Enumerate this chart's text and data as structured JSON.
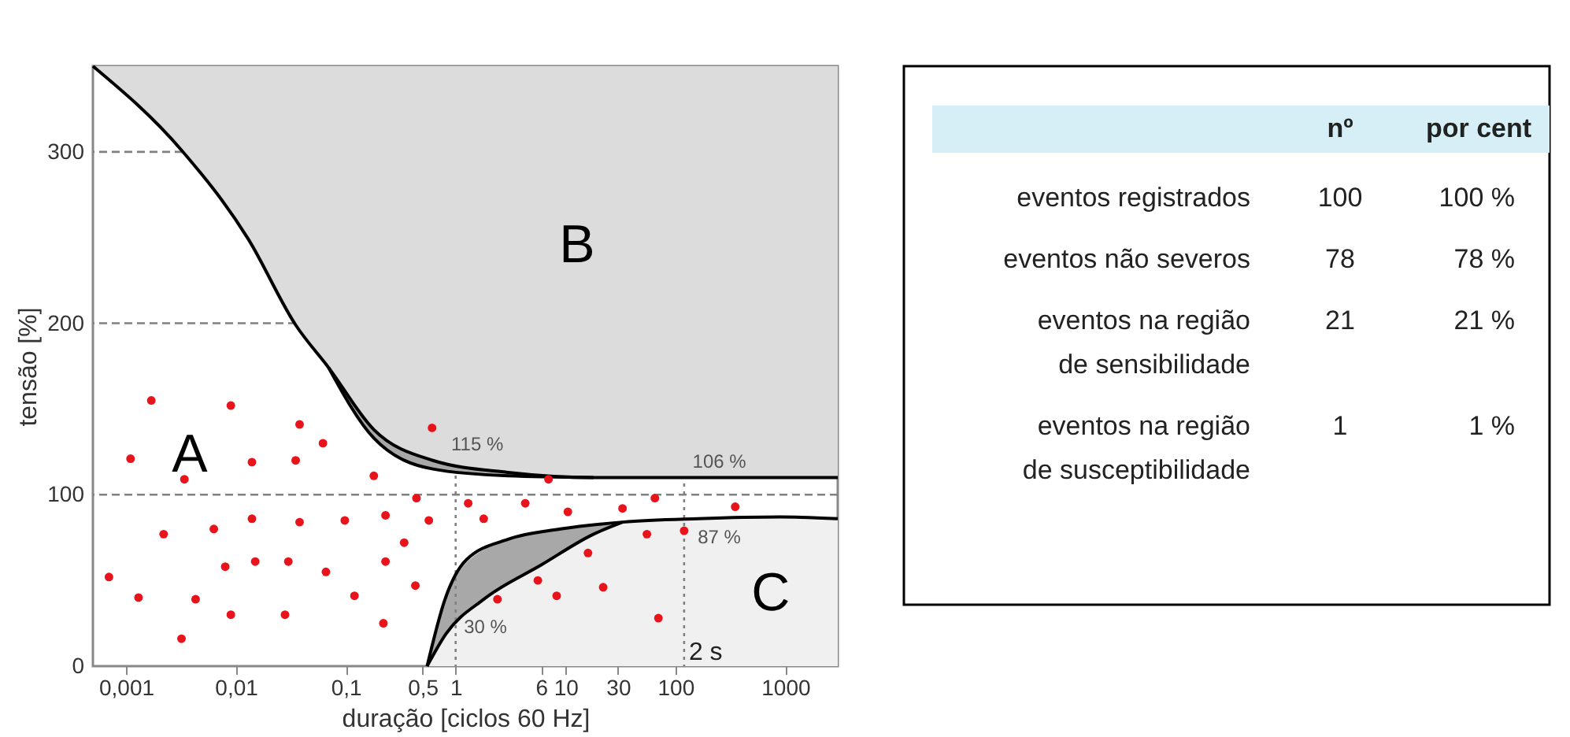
{
  "chart_data": [
    {
      "type": "scatter",
      "xlabel": "duração [ciclos 60 Hz]",
      "ylabel": "tensão [%]",
      "log": "x",
      "xlim": [
        0.0005,
        3000
      ],
      "ylim": [
        0,
        350
      ],
      "xticks": [
        {
          "value": 0.001,
          "label": "0,001"
        },
        {
          "value": 0.01,
          "label": "0,01"
        },
        {
          "value": 0.1,
          "label": "0,1"
        },
        {
          "value": 0.5,
          "label": "0,5"
        },
        1,
        6,
        10,
        30,
        100,
        1000
      ],
      "yticks": [
        0,
        100,
        200,
        300
      ],
      "series": [
        {
          "type": "line",
          "color": "#000000",
          "x": [
            0.0005,
            0.0032,
            0.013,
            0.035,
            0.07,
            0.18,
            0.62,
            3,
            18,
            3000
          ],
          "values": [
            350,
            301,
            249,
            199,
            174,
            138,
            120,
            113,
            110,
            110
          ],
          "lower": [
            350,
            301,
            249,
            199,
            174,
            138,
            120,
            113,
            110,
            110
          ],
          "upper": [
            350,
            350,
            350,
            350,
            350,
            350,
            350,
            350,
            350,
            350
          ]
        },
        {
          "type": "line",
          "color": "#000000",
          "x": [
            0.07,
            0.18,
            0.62,
            3,
            18
          ],
          "values": [
            174,
            133,
            115,
            111,
            110
          ],
          "lower": [
            174,
            133,
            115,
            111,
            110
          ],
          "upper": [
            174,
            138,
            120,
            113,
            110
          ]
        },
        {
          "type": "line",
          "color": "#000000",
          "x": [
            0.55,
            0.8,
            1.25,
            3,
            9,
            33,
            160,
            900,
            3000
          ],
          "values": [
            0,
            39,
            62,
            74,
            80,
            84,
            86,
            87,
            86
          ],
          "lower": [
            0,
            0,
            0,
            0,
            0,
            0,
            0,
            0,
            0
          ],
          "upper": [
            0,
            39,
            62,
            74,
            80,
            84,
            86,
            87,
            86
          ]
        },
        {
          "type": "line",
          "color": "#000000",
          "x": [
            0.55,
            0.82,
            1.8,
            6,
            18,
            33
          ],
          "values": [
            0,
            19,
            39,
            59,
            77,
            84
          ],
          "lower": [
            0,
            19,
            39,
            59,
            77,
            84
          ],
          "upper": [
            0,
            40,
            68,
            78,
            82,
            84
          ]
        },
        {
          "type": "scatter",
          "color": "#e8141b",
          "marker": "circle",
          "x": [
            0.0017,
            0.009,
            0.0011,
            0.038,
            0.062,
            0.014,
            0.035,
            0.0034,
            0.18,
            0.61,
            7,
            0.44,
            0.0022,
            0.0063,
            0.014,
            0.038,
            0.098,
            0.23,
            0.57,
            1.3,
            1.8,
            4.3,
            10.5,
            33,
            65,
            350,
            55,
            120,
            16,
            0.34,
            0.0007,
            0.008,
            0.015,
            0.03,
            0.066,
            0.23,
            0.0013,
            0.0043,
            0.12,
            0.43,
            5.6,
            8.3,
            22,
            2.4,
            0.009,
            0.028,
            0.22,
            0.0032,
            70
          ],
          "values": [
            155,
            152,
            121,
            141,
            130,
            119,
            120,
            109,
            111,
            139,
            109,
            98,
            77,
            80,
            86,
            84,
            85,
            88,
            85,
            95,
            86,
            95,
            90,
            92,
            98,
            93,
            77,
            79,
            66,
            72,
            52,
            58,
            61,
            61,
            55,
            61,
            40,
            39,
            41,
            47,
            50,
            41,
            46,
            39,
            30,
            30,
            25,
            16,
            28
          ]
        }
      ],
      "ref_lines": [
        {
          "axis": "y",
          "value": 100,
          "color": "#808080",
          "line_style": "dashed"
        },
        {
          "axis": "y",
          "value": 200,
          "color": "#808080",
          "line_style": "dashed"
        },
        {
          "axis": "y",
          "value": 300,
          "color": "#808080",
          "line_style": "dashed"
        },
        {
          "axis": "x",
          "value": 1,
          "color": "#808080",
          "line_style": "dotted"
        },
        {
          "axis": "x",
          "value": 120,
          "color": "#808080",
          "line_style": "dotted",
          "label": "2 s"
        }
      ],
      "annotations": [
        "A",
        "B",
        "C",
        "115 %",
        "106 %",
        "87 %",
        "30 %"
      ]
    },
    {
      "type": "other",
      "categories": [
        "eventos registrados",
        "eventos não severos",
        "eventos na região\nde sensibilidade",
        "eventos na região\nde susceptibilidade"
      ],
      "series": [
        {
          "name": "nº",
          "values": [
            100,
            78,
            21,
            1
          ],
          "data_labels": true
        },
        {
          "name": "por cent",
          "values": [
            100,
            78,
            21,
            1
          ],
          "value_labels": [
            "100 %",
            "78 %",
            "21 %",
            "1 %"
          ]
        }
      ]
    }
  ]
}
